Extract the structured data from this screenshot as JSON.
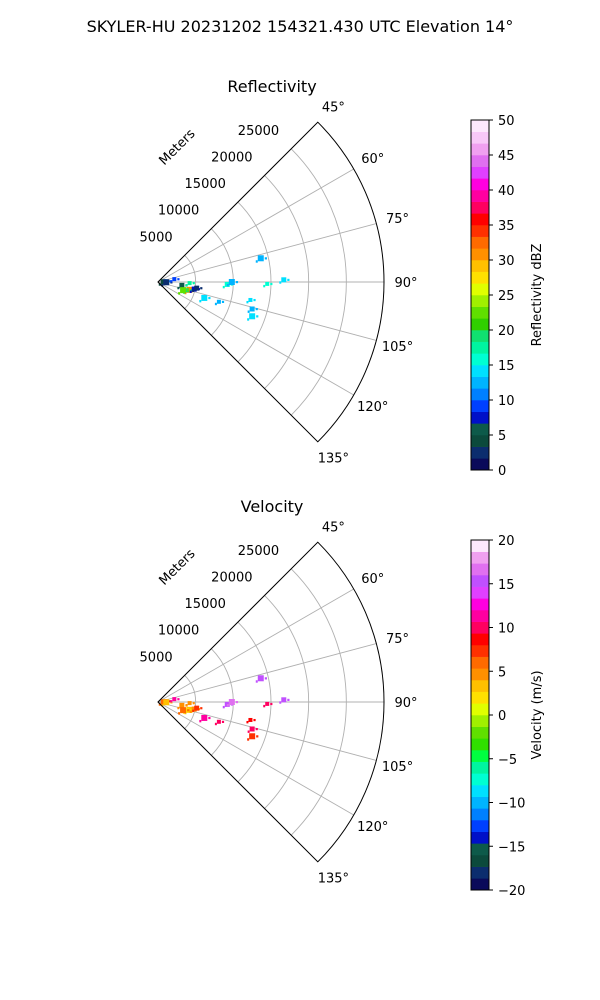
{
  "figure": {
    "suptitle": "SKYLER-HU  20231202  154321.430 UTC Elevation 14°"
  },
  "chart_data": [
    {
      "type": "heatmap",
      "title": "Reflectivity",
      "projection": "polar-sector",
      "azimuth_range_deg": [
        45,
        135
      ],
      "range_max_m": 30000,
      "range_ticks": [
        "5000",
        "10000",
        "15000",
        "20000",
        "25000"
      ],
      "range_tick_values": [
        5000,
        10000,
        15000,
        20000,
        25000
      ],
      "range_label": "Meters",
      "azimuth_ticks": [
        "45°",
        "60°",
        "75°",
        "90°",
        "105°",
        "120°",
        "135°"
      ],
      "azimuth_tick_values": [
        45,
        60,
        75,
        90,
        105,
        120,
        135
      ],
      "grid": true,
      "colorbar": {
        "label": "Reflectivity dBZ",
        "min": 0,
        "max": 50,
        "ticks": [
          "0",
          "5",
          "10",
          "15",
          "20",
          "25",
          "30",
          "35",
          "40",
          "45",
          "50"
        ],
        "tick_values": [
          0,
          5,
          10,
          15,
          20,
          25,
          30,
          35,
          40,
          45,
          50
        ],
        "colors": [
          "#0a0a5a",
          "#0b2d6e",
          "#0b4a3c",
          "#0d5a4a",
          "#0010c8",
          "#0040ff",
          "#0080ff",
          "#00b4ff",
          "#00e0ff",
          "#00ffd2",
          "#00f5a0",
          "#10e070",
          "#30d000",
          "#60e000",
          "#a0f000",
          "#e0ff00",
          "#ffe000",
          "#ffc000",
          "#ff9000",
          "#ff6a00",
          "#ff3000",
          "#ff0000",
          "#ff0060",
          "#ff00a0",
          "#ff00e0",
          "#e040ff",
          "#e070f0",
          "#f0a0f0",
          "#f8c8f8",
          "#fde8fd"
        ]
      },
      "echoes": [
        {
          "azimuth_deg": 84,
          "range_m": 1000,
          "value": 10
        },
        {
          "azimuth_deg": 88,
          "range_m": 700,
          "value": 4
        },
        {
          "azimuth_deg": 92,
          "range_m": 1100,
          "value": 3
        },
        {
          "azimuth_deg": 80,
          "range_m": 2200,
          "value": 9
        },
        {
          "azimuth_deg": 98,
          "range_m": 3200,
          "value": 6
        },
        {
          "azimuth_deg": 104,
          "range_m": 4300,
          "value": 30
        },
        {
          "azimuth_deg": 106,
          "range_m": 4000,
          "value": 19
        },
        {
          "azimuth_deg": 101,
          "range_m": 4900,
          "value": 8
        },
        {
          "azimuth_deg": 108,
          "range_m": 3500,
          "value": 22
        },
        {
          "azimuth_deg": 92,
          "range_m": 4200,
          "value": 17
        },
        {
          "azimuth_deg": 99,
          "range_m": 5200,
          "value": 3
        },
        {
          "azimuth_deg": 109,
          "range_m": 6500,
          "value": 14
        },
        {
          "azimuth_deg": 108,
          "range_m": 8500,
          "value": 13
        },
        {
          "azimuth_deg": 92,
          "range_m": 9200,
          "value": 15
        },
        {
          "azimuth_deg": 90,
          "range_m": 9800,
          "value": 13
        },
        {
          "azimuth_deg": 101,
          "range_m": 12500,
          "value": 14
        },
        {
          "azimuth_deg": 106,
          "range_m": 13000,
          "value": 13
        },
        {
          "azimuth_deg": 110,
          "range_m": 13300,
          "value": 14
        },
        {
          "azimuth_deg": 91,
          "range_m": 14500,
          "value": 15
        },
        {
          "azimuth_deg": 89,
          "range_m": 16700,
          "value": 14
        },
        {
          "azimuth_deg": 77,
          "range_m": 14000,
          "value": 13
        }
      ]
    },
    {
      "type": "heatmap",
      "title": "Velocity",
      "projection": "polar-sector",
      "azimuth_range_deg": [
        45,
        135
      ],
      "range_max_m": 30000,
      "range_ticks": [
        "5000",
        "10000",
        "15000",
        "20000",
        "25000"
      ],
      "range_tick_values": [
        5000,
        10000,
        15000,
        20000,
        25000
      ],
      "range_label": "Meters",
      "azimuth_ticks": [
        "45°",
        "60°",
        "75°",
        "90°",
        "105°",
        "120°",
        "135°"
      ],
      "azimuth_tick_values": [
        45,
        60,
        75,
        90,
        105,
        120,
        135
      ],
      "grid": true,
      "colorbar": {
        "label": "Velocity (m/s)",
        "min": -20,
        "max": 20,
        "ticks": [
          "−20",
          "−15",
          "−10",
          "−5",
          "0",
          "5",
          "10",
          "15",
          "20"
        ],
        "tick_values": [
          -20,
          -15,
          -10,
          -5,
          0,
          5,
          10,
          15,
          20
        ],
        "colors": [
          "#0a0a5a",
          "#0b2d6e",
          "#0b4a3c",
          "#0d5a4a",
          "#0010c8",
          "#0040ff",
          "#0080ff",
          "#00b4ff",
          "#00e0ff",
          "#00ffd2",
          "#00f5a0",
          "#00ff40",
          "#30e000",
          "#60e000",
          "#a0f000",
          "#e0ff00",
          "#ffe000",
          "#ffc000",
          "#ff9000",
          "#ff6a00",
          "#ff3000",
          "#ff0000",
          "#ff0060",
          "#ff00a0",
          "#ff00e0",
          "#e040ff",
          "#c050ff",
          "#e070f0",
          "#f0a0f0",
          "#fde8fd"
        ]
      },
      "echoes": [
        {
          "azimuth_deg": 84,
          "range_m": 1000,
          "value": 8
        },
        {
          "azimuth_deg": 88,
          "range_m": 700,
          "value": 6
        },
        {
          "azimuth_deg": 92,
          "range_m": 1100,
          "value": 3
        },
        {
          "azimuth_deg": 80,
          "range_m": 2200,
          "value": 11
        },
        {
          "azimuth_deg": 98,
          "range_m": 3200,
          "value": 5
        },
        {
          "azimuth_deg": 104,
          "range_m": 4300,
          "value": 3
        },
        {
          "azimuth_deg": 106,
          "range_m": 4000,
          "value": 2
        },
        {
          "azimuth_deg": 101,
          "range_m": 4900,
          "value": 5
        },
        {
          "azimuth_deg": 108,
          "range_m": 3500,
          "value": 6
        },
        {
          "azimuth_deg": 92,
          "range_m": 4200,
          "value": 4
        },
        {
          "azimuth_deg": 99,
          "range_m": 5200,
          "value": 7
        },
        {
          "azimuth_deg": 109,
          "range_m": 6500,
          "value": 11
        },
        {
          "azimuth_deg": 108,
          "range_m": 8500,
          "value": 10
        },
        {
          "azimuth_deg": 92,
          "range_m": 9200,
          "value": 15
        },
        {
          "azimuth_deg": 90,
          "range_m": 9800,
          "value": 16
        },
        {
          "azimuth_deg": 101,
          "range_m": 12500,
          "value": 9
        },
        {
          "azimuth_deg": 106,
          "range_m": 13000,
          "value": 10
        },
        {
          "azimuth_deg": 110,
          "range_m": 13300,
          "value": 7
        },
        {
          "azimuth_deg": 91,
          "range_m": 14500,
          "value": 10
        },
        {
          "azimuth_deg": 89,
          "range_m": 16700,
          "value": 15
        },
        {
          "azimuth_deg": 77,
          "range_m": 14000,
          "value": 15
        }
      ]
    }
  ]
}
